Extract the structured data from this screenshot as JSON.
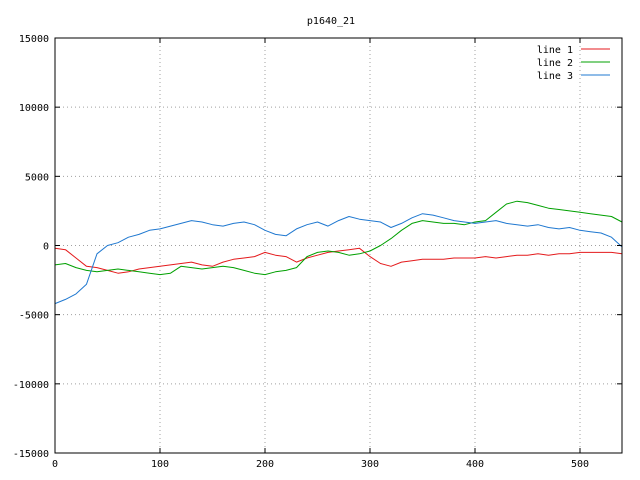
{
  "chart_data": {
    "type": "line",
    "title": "p1640_21",
    "xlabel": "",
    "ylabel": "",
    "xlim": [
      0,
      540
    ],
    "ylim": [
      -15000,
      15000
    ],
    "x_ticks": [
      0,
      100,
      200,
      300,
      400,
      500
    ],
    "y_ticks": [
      -15000,
      -10000,
      -5000,
      0,
      5000,
      10000,
      15000
    ],
    "grid": true,
    "legend_position": "top-right",
    "series": [
      {
        "name": "line 1",
        "color": "#e41a1c",
        "x": [
          0,
          10,
          20,
          30,
          40,
          50,
          60,
          70,
          80,
          90,
          100,
          110,
          120,
          130,
          140,
          150,
          160,
          170,
          180,
          190,
          200,
          210,
          220,
          230,
          240,
          250,
          260,
          270,
          280,
          290,
          300,
          310,
          320,
          330,
          340,
          350,
          360,
          370,
          380,
          390,
          400,
          410,
          420,
          430,
          440,
          450,
          460,
          470,
          480,
          490,
          500,
          510,
          520,
          530,
          540
        ],
        "y": [
          -200,
          -300,
          -900,
          -1500,
          -1600,
          -1800,
          -2000,
          -1900,
          -1700,
          -1600,
          -1500,
          -1400,
          -1300,
          -1200,
          -1400,
          -1500,
          -1200,
          -1000,
          -900,
          -800,
          -500,
          -700,
          -800,
          -1200,
          -900,
          -700,
          -500,
          -400,
          -300,
          -200,
          -800,
          -1300,
          -1500,
          -1200,
          -1100,
          -1000,
          -1000,
          -1000,
          -900,
          -900,
          -900,
          -800,
          -900,
          -800,
          -700,
          -700,
          -600,
          -700,
          -600,
          -600,
          -500,
          -500,
          -500,
          -500,
          -600
        ]
      },
      {
        "name": "line 2",
        "color": "#00a000",
        "x": [
          0,
          10,
          20,
          30,
          40,
          50,
          60,
          70,
          80,
          90,
          100,
          110,
          120,
          130,
          140,
          150,
          160,
          170,
          180,
          190,
          200,
          210,
          220,
          230,
          240,
          250,
          260,
          270,
          280,
          290,
          300,
          310,
          320,
          330,
          340,
          350,
          360,
          370,
          380,
          390,
          400,
          410,
          420,
          430,
          440,
          450,
          460,
          470,
          480,
          490,
          500,
          510,
          520,
          530,
          540
        ],
        "y": [
          -1400,
          -1300,
          -1600,
          -1800,
          -1900,
          -1800,
          -1700,
          -1800,
          -1900,
          -2000,
          -2100,
          -2000,
          -1500,
          -1600,
          -1700,
          -1600,
          -1500,
          -1600,
          -1800,
          -2000,
          -2100,
          -1900,
          -1800,
          -1600,
          -800,
          -500,
          -400,
          -500,
          -700,
          -600,
          -400,
          0,
          500,
          1100,
          1600,
          1800,
          1700,
          1600,
          1600,
          1500,
          1700,
          1800,
          2400,
          3000,
          3200,
          3100,
          2900,
          2700,
          2600,
          2500,
          2400,
          2300,
          2200,
          2100,
          1700
        ]
      },
      {
        "name": "line 3",
        "color": "#1f78d0",
        "x": [
          0,
          10,
          20,
          30,
          40,
          50,
          60,
          70,
          80,
          90,
          100,
          110,
          120,
          130,
          140,
          150,
          160,
          170,
          180,
          190,
          200,
          210,
          220,
          230,
          240,
          250,
          260,
          270,
          280,
          290,
          300,
          310,
          320,
          330,
          340,
          350,
          360,
          370,
          380,
          390,
          400,
          410,
          420,
          430,
          440,
          450,
          460,
          470,
          480,
          490,
          500,
          510,
          520,
          530,
          540
        ],
        "y": [
          -4200,
          -3900,
          -3500,
          -2800,
          -600,
          0,
          200,
          600,
          800,
          1100,
          1200,
          1400,
          1600,
          1800,
          1700,
          1500,
          1400,
          1600,
          1700,
          1500,
          1100,
          800,
          700,
          1200,
          1500,
          1700,
          1400,
          1800,
          2100,
          1900,
          1800,
          1700,
          1300,
          1600,
          2000,
          2300,
          2200,
          2000,
          1800,
          1700,
          1600,
          1700,
          1800,
          1600,
          1500,
          1400,
          1500,
          1300,
          1200,
          1300,
          1100,
          1000,
          900,
          600,
          -100
        ]
      }
    ]
  }
}
